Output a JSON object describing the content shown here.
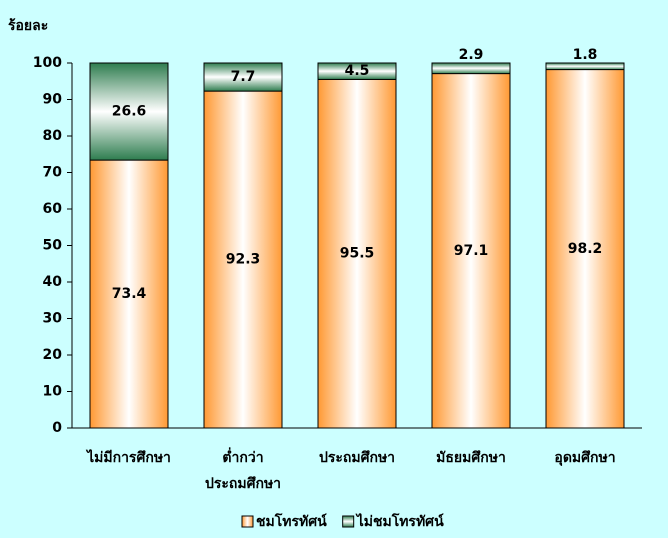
{
  "chart_data": {
    "type": "stacked_bar",
    "y_label": "ร้อยละ",
    "categories": [
      [
        "ไม่มีการศึกษา"
      ],
      [
        "ต่ำกว่า",
        "ประถมศึกษา"
      ],
      [
        "ประถมศึกษา"
      ],
      [
        "มัธยมศึกษา"
      ],
      [
        "อุดมศึกษา"
      ]
    ],
    "series": [
      {
        "name": "ชมโทรทัศน์",
        "color": "#ff9933",
        "values": [
          73.4,
          92.3,
          95.5,
          97.1,
          98.2
        ]
      },
      {
        "name": "ไม่ชมโทรทัศน์",
        "color": "#2e7d4f",
        "values": [
          26.6,
          7.7,
          4.5,
          2.9,
          1.8
        ]
      }
    ],
    "ylim": [
      0,
      100
    ],
    "yticks": [
      0,
      10,
      20,
      30,
      40,
      50,
      60,
      70,
      80,
      90,
      100
    ]
  }
}
